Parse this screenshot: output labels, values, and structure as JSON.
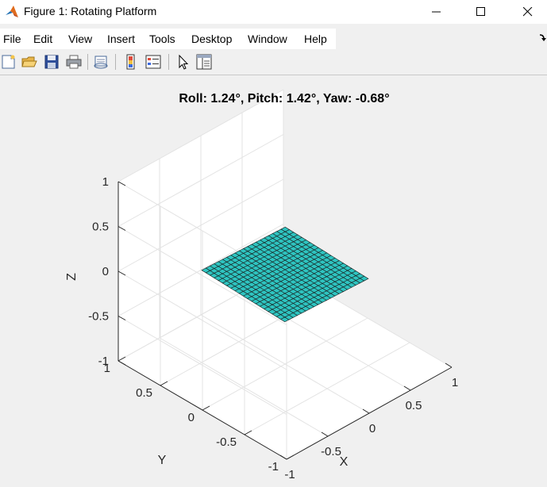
{
  "window": {
    "title": "Figure 1: Rotating Platform",
    "minimize_icon": "minimize-icon",
    "maximize_icon": "maximize-icon",
    "close_icon": "close-icon"
  },
  "menu": {
    "items": [
      "File",
      "Edit",
      "View",
      "Insert",
      "Tools",
      "Desktop",
      "Window",
      "Help"
    ]
  },
  "toolbar": {
    "icons": [
      "new-figure-icon",
      "open-file-icon",
      "save-icon",
      "print-icon",
      "link-plot-icon",
      "colorbar-icon",
      "legend-icon",
      "edit-plot-icon",
      "property-inspector-icon"
    ]
  },
  "colors": {
    "surface_face": "#2ec4c0",
    "surface_edge": "#1a1a1a",
    "grid": "#e3e3e3",
    "axis": "#262626",
    "figure_bg": "#f0f0f0",
    "axes_bg": "#ffffff"
  },
  "chart_data": {
    "type": "surface",
    "title": "Roll: 1.24°, Pitch: 1.42°, Yaw: -0.68°",
    "xlabel": "X",
    "ylabel": "Y",
    "zlabel": "Z",
    "xlim": [
      -1,
      1
    ],
    "ylim": [
      -1,
      1
    ],
    "zlim": [
      -1,
      1
    ],
    "x_ticks": [
      -1,
      -0.5,
      0,
      0.5,
      1
    ],
    "y_ticks": [
      -1,
      -0.5,
      0,
      0.5,
      1
    ],
    "z_ticks": [
      -1,
      -0.5,
      0,
      0.5,
      1
    ],
    "x_tick_labels": [
      "-1",
      "-0.5",
      "0",
      "0.5",
      "1"
    ],
    "y_tick_labels": [
      "-1",
      "-0.5",
      "0",
      "0.5",
      "1"
    ],
    "z_tick_labels": [
      "-1",
      "-0.5",
      "0",
      "0.5",
      "1"
    ],
    "view": {
      "azimuth": -37.5,
      "elevation": 30
    },
    "grid": true,
    "surface": {
      "x_range": [
        -0.5,
        0.5
      ],
      "y_range": [
        -0.5,
        0.5
      ],
      "n_divisions": 20,
      "roll_deg": 1.24,
      "pitch_deg": 1.42,
      "yaw_deg": -0.68
    }
  }
}
